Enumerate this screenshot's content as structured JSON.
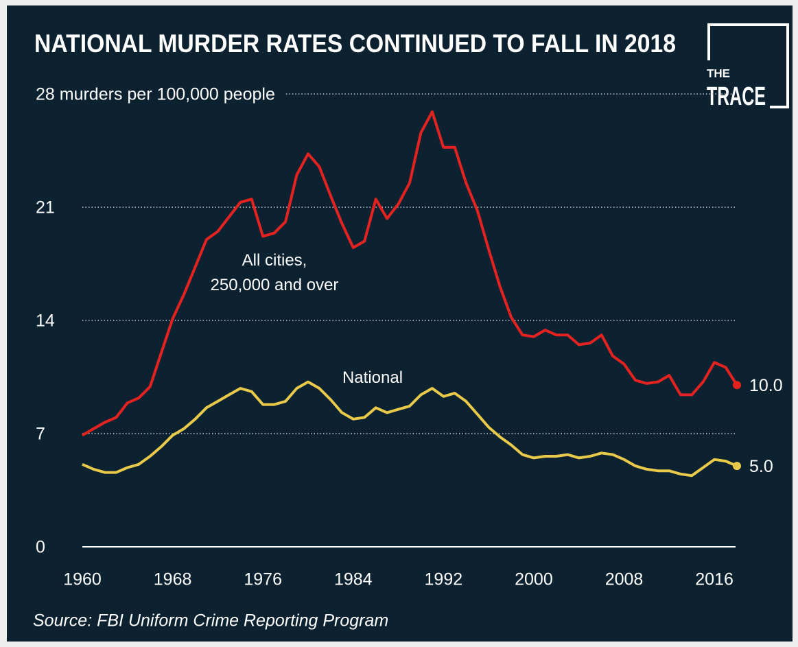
{
  "chart_data": {
    "type": "line",
    "title": "NATIONAL MURDER RATES CONTINUED TO FALL IN 2018",
    "source": "Source: FBI Uniform Crime Reporting Program",
    "logo": {
      "small": "THE",
      "big": "TRACE"
    },
    "x": [
      1960,
      1961,
      1962,
      1963,
      1964,
      1965,
      1966,
      1967,
      1968,
      1969,
      1970,
      1971,
      1972,
      1973,
      1974,
      1975,
      1976,
      1977,
      1978,
      1979,
      1980,
      1981,
      1982,
      1983,
      1984,
      1985,
      1986,
      1987,
      1988,
      1989,
      1990,
      1991,
      1992,
      1993,
      1994,
      1995,
      1996,
      1997,
      1998,
      1999,
      2000,
      2001,
      2002,
      2003,
      2004,
      2005,
      2006,
      2007,
      2008,
      2009,
      2010,
      2011,
      2012,
      2013,
      2014,
      2015,
      2016,
      2017,
      2018
    ],
    "xlim": [
      1960,
      2018
    ],
    "xticks": [
      1960,
      1968,
      1976,
      1984,
      1992,
      2000,
      2008,
      2016
    ],
    "ylim": [
      0,
      28
    ],
    "yticks": [
      0,
      7,
      14,
      21,
      {
        "value": 28,
        "label": "28 murders per 100,000 people"
      }
    ],
    "grid": true,
    "series": [
      {
        "name": "All cities,\n250,000 and over",
        "color": "#e42320",
        "values": [
          6.9,
          7.3,
          7.7,
          8.0,
          8.9,
          9.2,
          9.9,
          12.0,
          14.1,
          15.6,
          17.3,
          19.0,
          19.5,
          20.4,
          21.3,
          21.5,
          19.2,
          19.4,
          20.1,
          23.0,
          24.3,
          23.5,
          21.7,
          20.0,
          18.5,
          18.9,
          21.5,
          20.3,
          21.2,
          22.5,
          25.6,
          26.9,
          24.7,
          24.7,
          22.5,
          20.8,
          18.4,
          16.1,
          14.2,
          13.1,
          13.0,
          13.4,
          13.1,
          13.1,
          12.5,
          12.6,
          13.1,
          11.8,
          11.3,
          10.3,
          10.1,
          10.2,
          10.6,
          9.4,
          9.4,
          10.2,
          11.4,
          11.1,
          10.0
        ],
        "value_labels": [
          null,
          null,
          null,
          null,
          null,
          null,
          null,
          null,
          null,
          null,
          null,
          null,
          null,
          null,
          null,
          null,
          null,
          null,
          null,
          null,
          null,
          null,
          null,
          null,
          null,
          null,
          null,
          null,
          null,
          null,
          null,
          null,
          null,
          null,
          null,
          null,
          null,
          null,
          null,
          null,
          null,
          null,
          null,
          null,
          null,
          null,
          null,
          null,
          null,
          null,
          null,
          null,
          null,
          null,
          null,
          null,
          null,
          null,
          "10.0"
        ]
      },
      {
        "name": "National",
        "color": "#e8c94a",
        "values": [
          5.1,
          4.8,
          4.6,
          4.6,
          4.9,
          5.1,
          5.6,
          6.2,
          6.9,
          7.3,
          7.9,
          8.6,
          9.0,
          9.4,
          9.8,
          9.6,
          8.8,
          8.8,
          9.0,
          9.8,
          10.2,
          9.8,
          9.1,
          8.3,
          7.9,
          8.0,
          8.6,
          8.3,
          8.5,
          8.7,
          9.4,
          9.8,
          9.3,
          9.5,
          9.0,
          8.2,
          7.4,
          6.8,
          6.3,
          5.7,
          5.5,
          5.6,
          5.6,
          5.7,
          5.5,
          5.6,
          5.8,
          5.7,
          5.4,
          5.0,
          4.8,
          4.7,
          4.7,
          4.5,
          4.4,
          4.9,
          5.4,
          5.3,
          5.0
        ],
        "value_labels": [
          null,
          null,
          null,
          null,
          null,
          null,
          null,
          null,
          null,
          null,
          null,
          null,
          null,
          null,
          null,
          null,
          null,
          null,
          null,
          null,
          null,
          null,
          null,
          null,
          null,
          null,
          null,
          null,
          null,
          null,
          null,
          null,
          null,
          null,
          null,
          null,
          null,
          null,
          null,
          null,
          null,
          null,
          null,
          null,
          null,
          null,
          null,
          null,
          null,
          null,
          null,
          null,
          null,
          null,
          null,
          null,
          null,
          null,
          "5.0"
        ]
      }
    ]
  }
}
